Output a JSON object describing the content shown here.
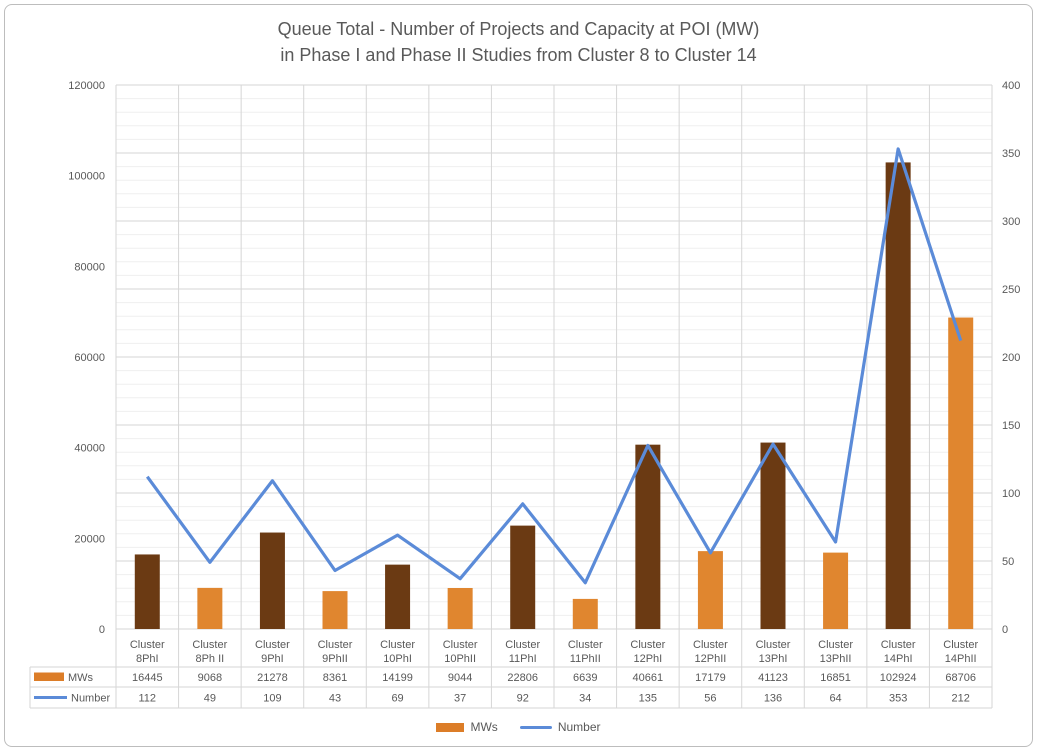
{
  "title_line1": "Queue Total - Number of Projects and Capacity at POI (MW)",
  "title_line2": "in Phase I and Phase II Studies from Cluster 8 to Cluster 14",
  "legend": {
    "mws_label": "MWs",
    "number_label": "Number"
  },
  "colors": {
    "bar_phase1": "#6B3A13",
    "bar_phase2": "#E0862F",
    "line": "#5B8BD8",
    "legend_swatch": "#DC7D28",
    "grid_major": "#D6D6D6",
    "grid_minor": "#EFEFEF",
    "text": "#595959",
    "frame_border": "#BDBDBD"
  },
  "chart_data": {
    "type": "combo-bar-line",
    "title": "Queue Total - Number of Projects and Capacity at POI (MW) in Phase I and Phase II Studies from Cluster 8 to Cluster 14",
    "categories": [
      "Cluster 8PhI",
      "Cluster 8Ph II",
      "Cluster 9PhI",
      "Cluster 9PhII",
      "Cluster 10PhI",
      "Cluster 10PhII",
      "Cluster 11PhI",
      "Cluster 11PhII",
      "Cluster 12PhI",
      "Cluster 12PhII",
      "Cluster 13PhI",
      "Cluster 13PhII",
      "Cluster 14PhI",
      "Cluster 14PhII"
    ],
    "series": [
      {
        "name": "MWs",
        "type": "bar",
        "axis": "left",
        "values": [
          16445,
          9068,
          21278,
          8361,
          14199,
          9044,
          22806,
          6639,
          40661,
          17179,
          41123,
          16851,
          102924,
          68706
        ]
      },
      {
        "name": "Number",
        "type": "line",
        "axis": "right",
        "values": [
          112,
          49,
          109,
          43,
          69,
          37,
          92,
          34,
          135,
          56,
          136,
          64,
          353,
          212
        ]
      }
    ],
    "left_axis": {
      "min": 0,
      "max": 120000,
      "major": 20000,
      "minor": 4000
    },
    "right_axis": {
      "min": 0,
      "max": 400,
      "major": 50,
      "minor": 10
    },
    "grid": "major-and-minor-horizontal, vertical category separators",
    "legend_position": "bottom",
    "data_table_shown": true
  }
}
